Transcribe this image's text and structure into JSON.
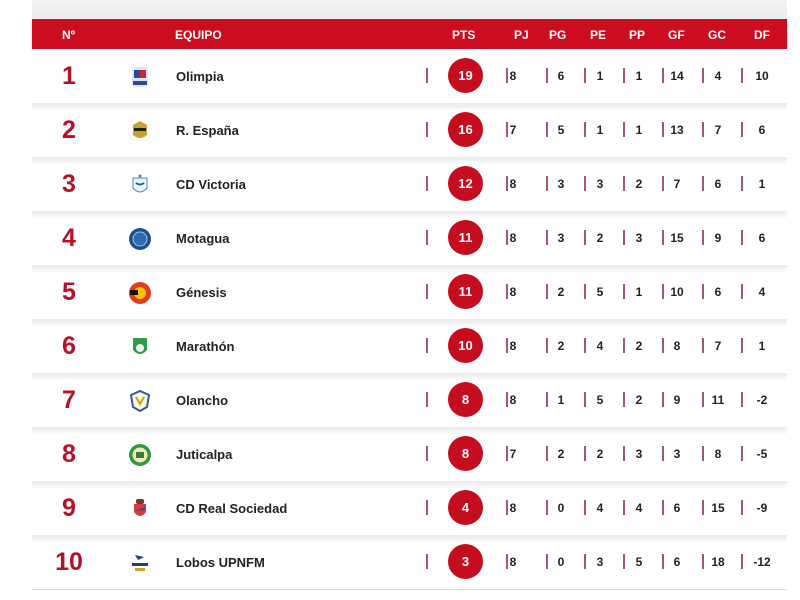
{
  "header": {
    "rank": "Nº",
    "team": "EQUIPO",
    "pts": "PTS",
    "pj": "PJ",
    "pg": "PG",
    "pe": "PE",
    "pp": "PP",
    "gf": "GF",
    "gc": "GC",
    "df": "DF"
  },
  "colors": {
    "accent": "#cc0d1f",
    "rank_text": "#b5122a",
    "separator": "#a35a66"
  },
  "rows": [
    {
      "rank": "1",
      "team": "Olimpia",
      "logo": "olimpia-crest-icon",
      "pts": "19",
      "pj": "8",
      "pg": "6",
      "pe": "1",
      "pp": "1",
      "gf": "14",
      "gc": "4",
      "df": "10"
    },
    {
      "rank": "2",
      "team": "R. España",
      "logo": "real-espana-crest-icon",
      "pts": "16",
      "pj": "7",
      "pg": "5",
      "pe": "1",
      "pp": "1",
      "gf": "13",
      "gc": "7",
      "df": "6"
    },
    {
      "rank": "3",
      "team": "CD Victoria",
      "logo": "victoria-crest-icon",
      "pts": "12",
      "pj": "8",
      "pg": "3",
      "pe": "3",
      "pp": "2",
      "gf": "7",
      "gc": "6",
      "df": "1"
    },
    {
      "rank": "4",
      "team": "Motagua",
      "logo": "motagua-crest-icon",
      "pts": "11",
      "pj": "8",
      "pg": "3",
      "pe": "2",
      "pp": "3",
      "gf": "15",
      "gc": "9",
      "df": "6"
    },
    {
      "rank": "5",
      "team": "Génesis",
      "logo": "genesis-crest-icon",
      "pts": "11",
      "pj": "8",
      "pg": "2",
      "pe": "5",
      "pp": "1",
      "gf": "10",
      "gc": "6",
      "df": "4"
    },
    {
      "rank": "6",
      "team": "Marathón",
      "logo": "marathon-crest-icon",
      "pts": "10",
      "pj": "8",
      "pg": "2",
      "pe": "4",
      "pp": "2",
      "gf": "8",
      "gc": "7",
      "df": "1"
    },
    {
      "rank": "7",
      "team": "Olancho",
      "logo": "olancho-crest-icon",
      "pts": "8",
      "pj": "8",
      "pg": "1",
      "pe": "5",
      "pp": "2",
      "gf": "9",
      "gc": "11",
      "df": "-2"
    },
    {
      "rank": "8",
      "team": "Juticalpa",
      "logo": "juticalpa-crest-icon",
      "pts": "8",
      "pj": "7",
      "pg": "2",
      "pe": "2",
      "pp": "3",
      "gf": "3",
      "gc": "8",
      "df": "-5"
    },
    {
      "rank": "9",
      "team": "CD Real Sociedad",
      "logo": "real-sociedad-crest-icon",
      "pts": "4",
      "pj": "8",
      "pg": "0",
      "pe": "4",
      "pp": "4",
      "gf": "6",
      "gc": "15",
      "df": "-9"
    },
    {
      "rank": "10",
      "team": "Lobos UPNFM",
      "logo": "lobos-upnfm-crest-icon",
      "pts": "3",
      "pj": "8",
      "pg": "0",
      "pe": "3",
      "pp": "5",
      "gf": "6",
      "gc": "18",
      "df": "-12"
    }
  ]
}
